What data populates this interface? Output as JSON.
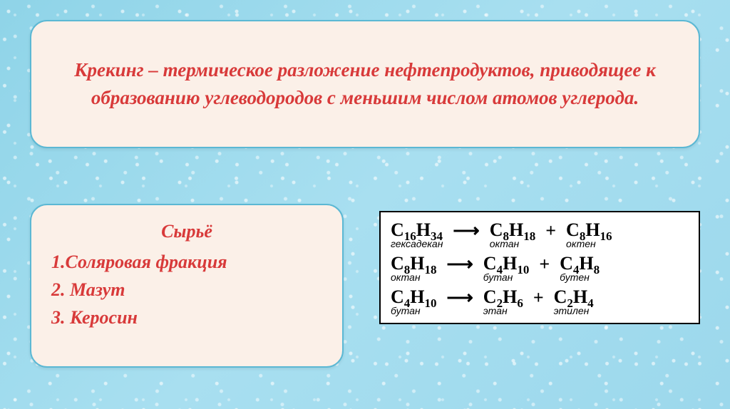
{
  "colors": {
    "panel_bg": "#fbf0e8",
    "panel_border": "#5bb8d4",
    "accent_text": "#d83a3a",
    "water_bg_light": "#a8dff0",
    "water_bg_dark": "#8fd4e8",
    "reaction_text": "#000000",
    "reaction_bg": "#ffffff"
  },
  "typography": {
    "title_fontsize": 27,
    "list_fontsize": 26,
    "formula_fontsize": 26,
    "molname_fontsize": 14
  },
  "title": "Крекинг – термическое разложение нефтепродуктов, приводящее к образованию углеводородов  с меньшим числом атомов углерода.",
  "raw_list": {
    "heading": "Сырьё",
    "items": [
      "1.Соляровая фракция",
      "2. Мазут",
      "3. Керосин"
    ]
  },
  "reactions": [
    {
      "reactant": {
        "C": 16,
        "H": 34,
        "name": "гексадекан"
      },
      "product_a": {
        "C": 8,
        "H": 18,
        "name": "октан"
      },
      "product_b": {
        "C": 8,
        "H": 16,
        "name": "октен"
      }
    },
    {
      "reactant": {
        "C": 8,
        "H": 18,
        "name": "октан"
      },
      "product_a": {
        "C": 4,
        "H": 10,
        "name": "бутан"
      },
      "product_b": {
        "C": 4,
        "H": 8,
        "name": "бутен"
      }
    },
    {
      "reactant": {
        "C": 4,
        "H": 10,
        "name": "бутан"
      },
      "product_a": {
        "C": 2,
        "H": 6,
        "name": "этан"
      },
      "product_b": {
        "C": 2,
        "H": 4,
        "name": "этилен"
      }
    }
  ]
}
